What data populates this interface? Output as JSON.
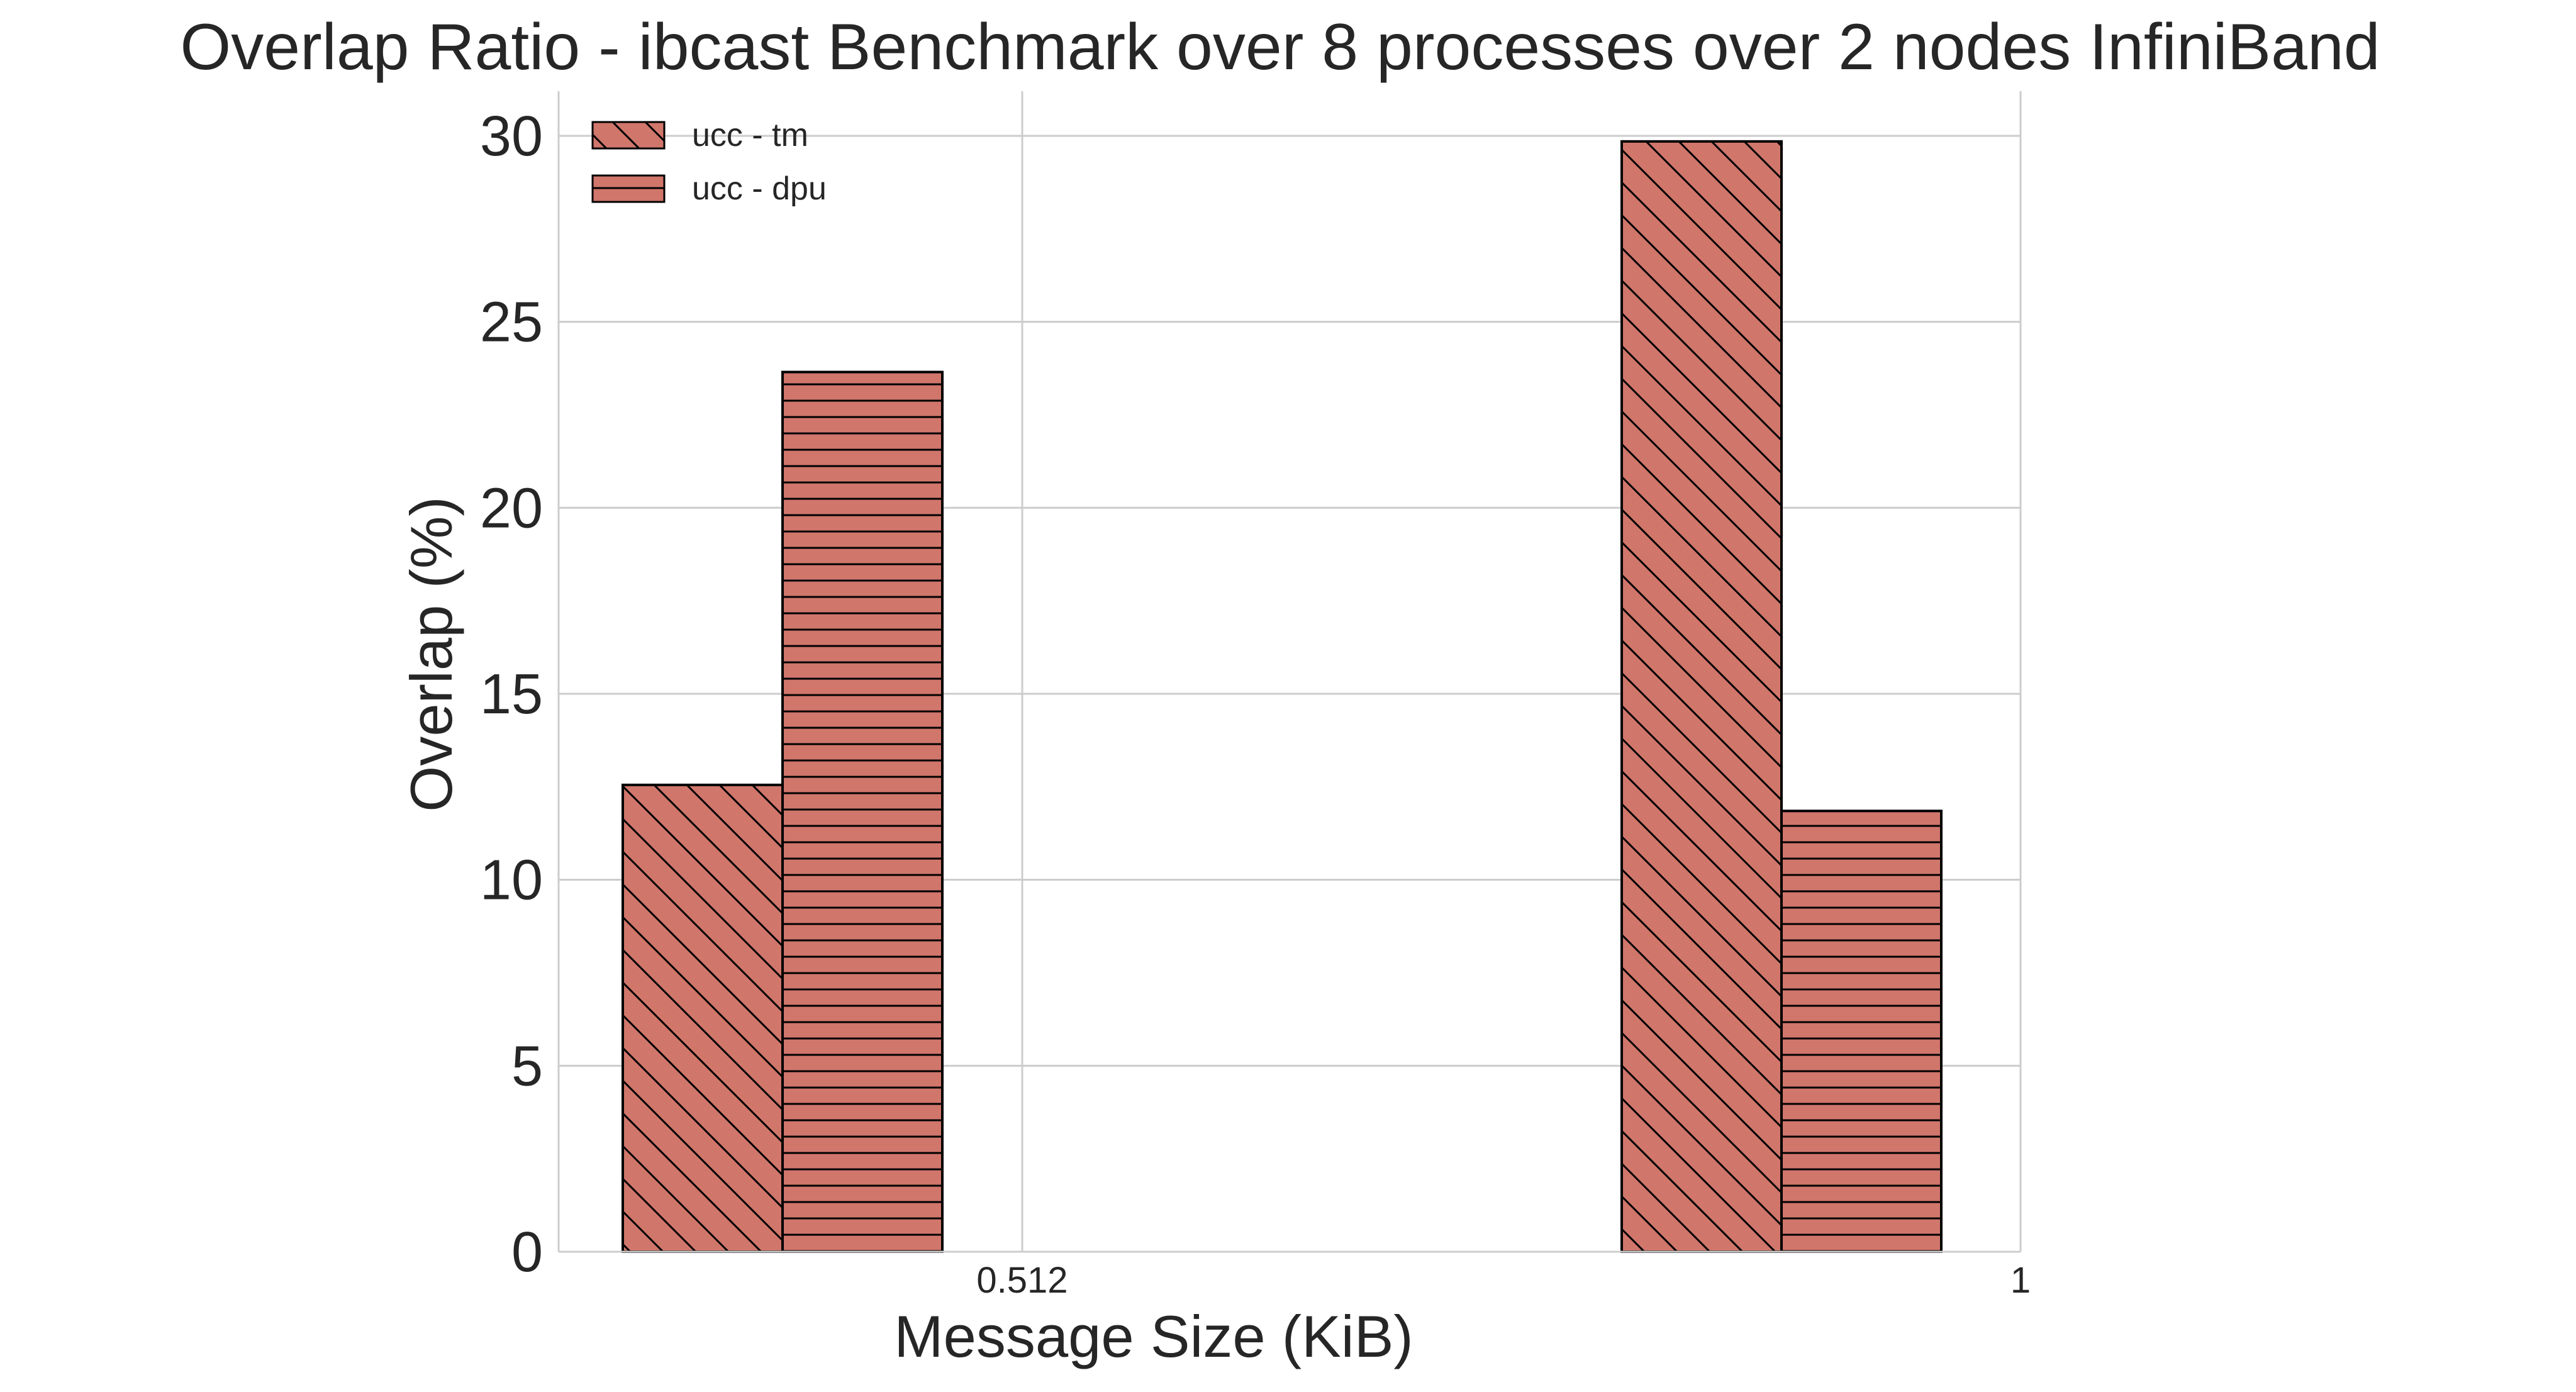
{
  "chart_data": {
    "type": "bar",
    "title": "Overlap Ratio - ibcast Benchmark over 8 processes over 2 nodes InfiniBand",
    "xlabel": "Message Size (KiB)",
    "ylabel": "Overlap (%)",
    "x_ticks": [
      "0.512",
      "1"
    ],
    "ylim": [
      0,
      31.2
    ],
    "y_ticks": [
      0,
      5,
      10,
      15,
      20,
      25,
      30
    ],
    "grid": true,
    "legend_position": "top-left",
    "bar_color": "#d0766b",
    "edge_color": "#000000",
    "series": [
      {
        "name": "ucc - tm",
        "hatch": "diagonal",
        "values": [
          12.55,
          29.85
        ]
      },
      {
        "name": "ucc - dpu",
        "hatch": "horizontal",
        "values": [
          23.65,
          11.85
        ]
      }
    ]
  }
}
